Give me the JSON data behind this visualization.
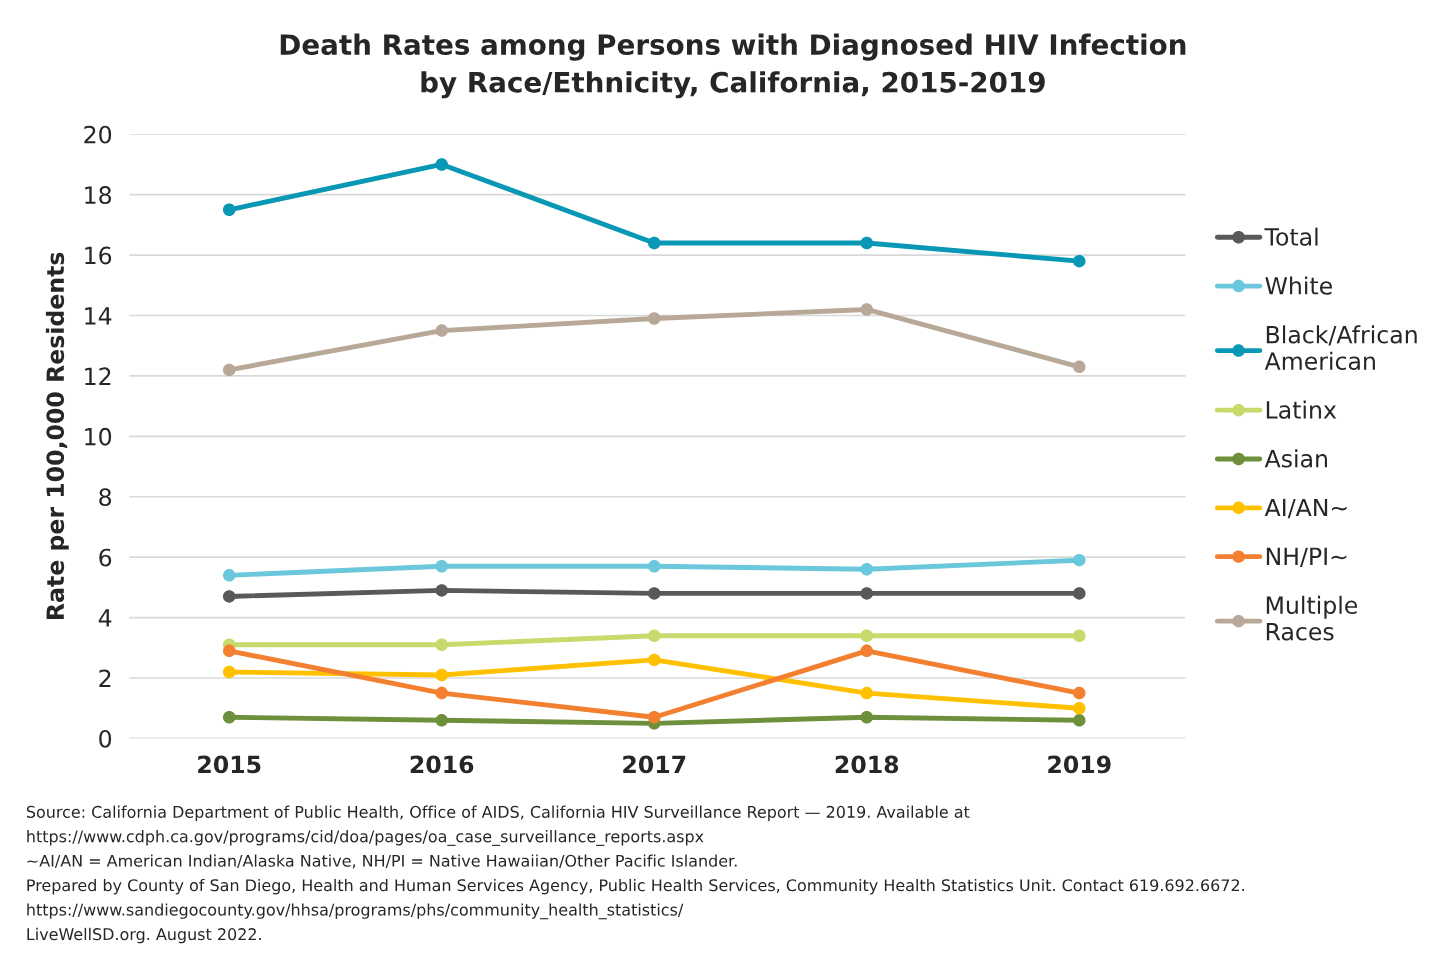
{
  "chart_data": {
    "type": "line",
    "title": "Death Rates among Persons with Diagnosed HIV Infection\nby Race/Ethnicity, California, 2015-2019",
    "ylabel": "Rate per 100,000 Residents",
    "categories": [
      "2015",
      "2016",
      "2017",
      "2018",
      "2019"
    ],
    "series": [
      {
        "name": "Total",
        "color": "#595959",
        "values": [
          4.7,
          4.9,
          4.8,
          4.8,
          4.8
        ]
      },
      {
        "name": "White",
        "color": "#6bc8dc",
        "values": [
          5.4,
          5.7,
          5.7,
          5.6,
          5.9
        ]
      },
      {
        "name": "Black/African American",
        "color": "#0897b4",
        "values": [
          17.5,
          19.0,
          16.4,
          16.4,
          15.8
        ]
      },
      {
        "name": "Latinx",
        "color": "#c6db6b",
        "values": [
          3.1,
          3.1,
          3.4,
          3.4,
          3.4
        ]
      },
      {
        "name": "Asian",
        "color": "#6e8f3c",
        "values": [
          0.7,
          0.6,
          0.5,
          0.7,
          0.6
        ]
      },
      {
        "name": "AI/AN~",
        "color": "#ffc000",
        "values": [
          2.2,
          2.1,
          2.6,
          1.5,
          1.0
        ]
      },
      {
        "name": "NH/PI~",
        "color": "#f28030",
        "values": [
          2.9,
          1.5,
          0.7,
          2.9,
          1.5
        ]
      },
      {
        "name": "Multiple Races",
        "color": "#b8a898",
        "values": [
          12.2,
          13.5,
          13.9,
          14.2,
          12.3
        ]
      }
    ],
    "ylim": [
      0,
      20
    ],
    "yticks": [
      0,
      2,
      4,
      6,
      8,
      10,
      12,
      14,
      16,
      18,
      20
    ],
    "grid": "y",
    "legend": "right",
    "marker": "circle",
    "line_style": "solid",
    "annotations": [
      "Source: California Department of Public Health, Office of AIDS, California HIV Surveillance Report — 2019. Available at",
      "https://www.cdph.ca.gov/programs/cid/doa/pages/oa_case_surveillance_reports.aspx",
      "~AI/AN = American Indian/Alaska Native, NH/PI = Native Hawaiian/Other Pacific Islander.",
      "Prepared by County of San Diego, Health and Human Services Agency, Public Health Services, Community Health Statistics Unit. Contact 619.692.6672.",
      "https://www.sandiegocounty.gov/hhsa/programs/phs/community_health_statistics/",
      "LiveWellSD.org. August 2022."
    ]
  }
}
